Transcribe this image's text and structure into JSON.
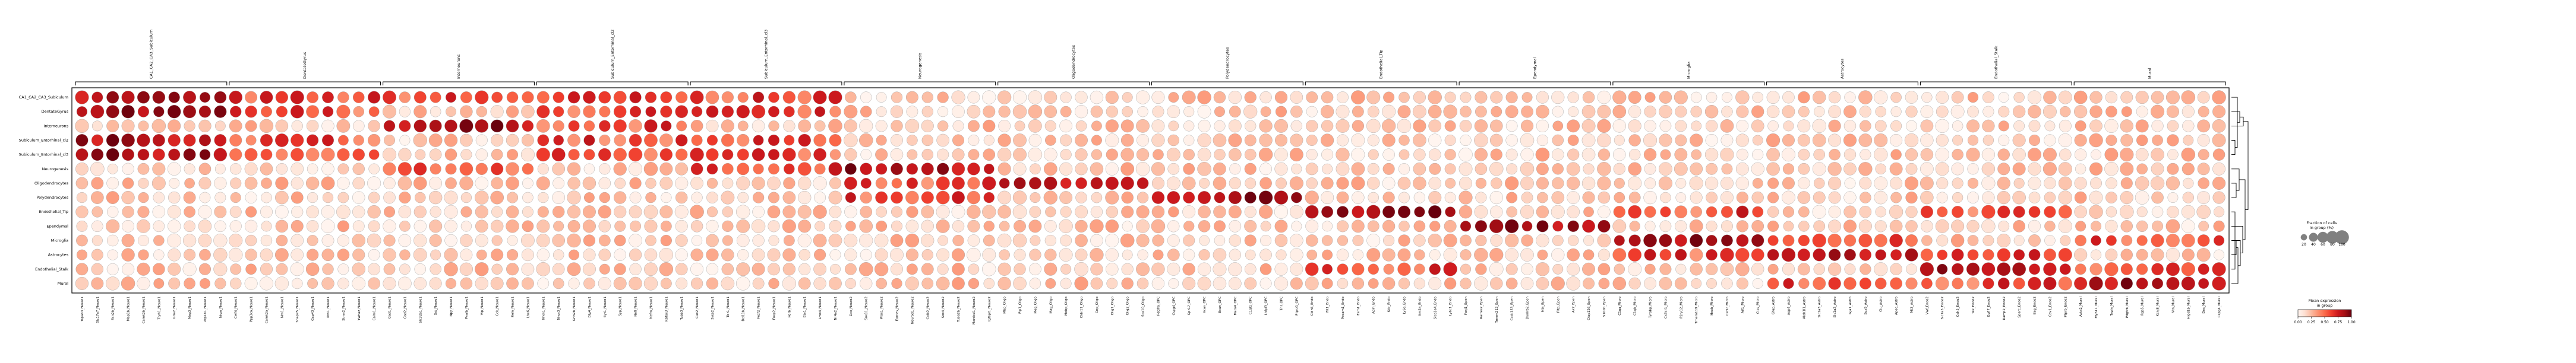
{
  "chart_data": {
    "type": "dotplot",
    "groups": [
      "CA1_CA2_CA3_Subiculum",
      "DentateGyrus",
      "Interneurons",
      "Subiculum_Entorhinal_cl2",
      "Subiculum_Entorhinal_cl3",
      "Neurogenesis",
      "Oligodendrocytes",
      "Polydendrocytes",
      "Endothelial_Tip",
      "Ependymal",
      "Microglia",
      "Astrocytes",
      "Endothelial_Stalk",
      "Mural"
    ],
    "gene_groups": [
      {
        "label": "CA1_CA2_CA3_Subiculum",
        "genes": [
          "Tspan3_Neuro1",
          "Slc17a7_Neuro1",
          "Scn2b_Neuro1",
          "Map1b_Neuro1",
          "Camk2b_Neuro1",
          "Ttyh1_Neuro1",
          "Gria2_Neuro1",
          "Meg3_Neuro1",
          "Atp1b1_Neuro1",
          "Nrgn_Neuro1"
        ]
      },
      {
        "label": "DentateGyrus",
        "genes": [
          "Celf4_Neuro1",
          "Ppp3ca_Neuro1",
          "Camk2a_Neuro1",
          "Nrn1_Neuro1",
          "Snap25_Neuro1",
          "Gap43_Neuro1",
          "Rtn1_Neuro1",
          "Stmn2_Neuro1",
          "Ywhaz_Neuro1",
          "Calm1_Neuro1"
        ]
      },
      {
        "label": "Interneurons",
        "genes": [
          "Gad1_Neuro1",
          "Gad2_Neuro1",
          "Slc32a1_Neuro1",
          "Sst_Neuro1",
          "Npy_Neuro1",
          "Pvalb_Neuro1",
          "Vip_Neuro1",
          "Cck_Neuro1",
          "Reln_Neuro1",
          "Lhx6_Neuro1"
        ]
      },
      {
        "label": "Subiculum_Entorhinal_cl2",
        "genes": [
          "Nrxn1_Neuro1",
          "Nrxn3_Neuro1",
          "Grin2b_Neuro1",
          "Dlg4_Neuro1",
          "Syt1_Neuro1",
          "Syp_Neuro1",
          "Nefl_Neuro1",
          "Nefm_Neuro1",
          "Rbfox3_Neuro1",
          "Tubb3_Neuro1"
        ]
      },
      {
        "label": "Subiculum_Entorhinal_cl3",
        "genes": [
          "Cux2_Neuro1",
          "Satb2_Neuro1",
          "Tbr1_Neuro1",
          "Bcl11b_Neuro1",
          "Fezf2_Neuro1",
          "Foxp2_Neuro1",
          "Rorb_Neuro1",
          "Etv1_Neuro1",
          "Lmo4_Neuro1",
          "Nr4a2_Neuro1"
        ]
      },
      {
        "label": "Neurogenesis",
        "genes": [
          "Dcx_Neuro2",
          "Sox11_Neuro2",
          "Prox1_Neuro2",
          "Eomes_Neuro2",
          "Neurod1_Neuro2",
          "Calb2_Neuro2",
          "Sox4_Neuro2",
          "Tubb2b_Neuro2",
          "Marcksl1_Neuro2",
          "Igfbpl1_Neuro2"
        ]
      },
      {
        "label": "Oligodendrocytes",
        "genes": [
          "Mbp_Oligo",
          "Plp1_Oligo",
          "Mog_Oligo",
          "Mag_Oligo",
          "Mobp_Oligo",
          "Cldn11_Oligo",
          "Cnp_Oligo",
          "Olig1_Oligo",
          "Olig2_Oligo",
          "Sox10_Oligo"
        ]
      },
      {
        "label": "Polydendrocytes",
        "genes": [
          "Pdgfra_OPC",
          "Cspg4_OPC",
          "Gpr17_OPC",
          "Vcan_OPC",
          "Bcan_OPC",
          "Matn4_OPC",
          "C1ql1_OPC",
          "Lhfpl3_OPC",
          "Tnr_OPC",
          "Ptprz1_OPC"
        ]
      },
      {
        "label": "Endothelial_Tip",
        "genes": [
          "Cldn5_Endo",
          "Flt1_Endo",
          "Pecam1_Endo",
          "Esm1_Endo",
          "Apln_Endo",
          "Kdr_Endo",
          "Ly6a_Endo",
          "Itm2a_Endo",
          "Slco1a4_Endo",
          "Ly6c1_Endo"
        ]
      },
      {
        "label": "Ependymal",
        "genes": [
          "Foxj1_Epen",
          "Rarres2_Epen",
          "Tmem212_Epen",
          "Ccdc153_Epen",
          "Dynlrb2_Epen",
          "Mia_Epen",
          "Pltp_Epen",
          "Ak7_Epen",
          "Cfap126_Epen",
          "S100b_Epen"
        ]
      },
      {
        "label": "Microglia",
        "genes": [
          "C1qa_Micro",
          "C1qb_Micro",
          "Tyrobp_Micro",
          "Cx3cr1_Micro",
          "P2ry12_Micro",
          "Tmem119_Micro",
          "Hexb_Micro",
          "Csf1r_Micro",
          "Aif1_Micro",
          "Ctss_Micro"
        ]
      },
      {
        "label": "Astrocytes",
        "genes": [
          "Gfap_Astro",
          "Aqp4_Astro",
          "Aldh1l1_Astro",
          "Slc1a3_Astro",
          "Slc1a2_Astro",
          "Gja1_Astro",
          "Sox9_Astro",
          "Clu_Astro",
          "Apoe_Astro",
          "Mt2_Astro"
        ]
      },
      {
        "label": "Endothelial_Stalk",
        "genes": [
          "Vwf_Endo2",
          "Slc7a5_Endo2",
          "Cdh5_Endo2",
          "Tek_Endo2",
          "Egfl7_Endo2",
          "Ramp2_Endo2",
          "Sparc_Endo2",
          "Bsg_Endo2",
          "Cav1_Endo2",
          "Ptprb_Endo2"
        ]
      },
      {
        "label": "Mural",
        "genes": [
          "Acta2_Mural",
          "Myh11_Mural",
          "Tagln_Mural",
          "Pdgfrb_Mural",
          "Rgs5_Mural",
          "Kcnj8_Mural",
          "Vtn_Mural",
          "Higd1b_Mural",
          "Des_Mural",
          "Cspg4_Mural"
        ]
      }
    ],
    "legend_size": {
      "title_lines": [
        "Fraction of cells",
        "in group (%)"
      ],
      "values": [
        20,
        40,
        60,
        80,
        100
      ]
    },
    "legend_color": {
      "title_lines": [
        "Mean expression",
        "in group"
      ],
      "ticks": [
        0.0,
        0.25,
        0.5,
        0.75,
        1.0
      ],
      "tick_labels": [
        "0.00",
        "0.25",
        "0.50",
        "0.75",
        "1.00"
      ],
      "colormap": "Reds"
    },
    "dendrogram": true,
    "color_scale": [
      "#fff5f0",
      "#fee0d2",
      "#fcbba1",
      "#fc9272",
      "#fb6a4a",
      "#ef3b2c",
      "#cb181d",
      "#a50f15",
      "#67000d"
    ]
  }
}
